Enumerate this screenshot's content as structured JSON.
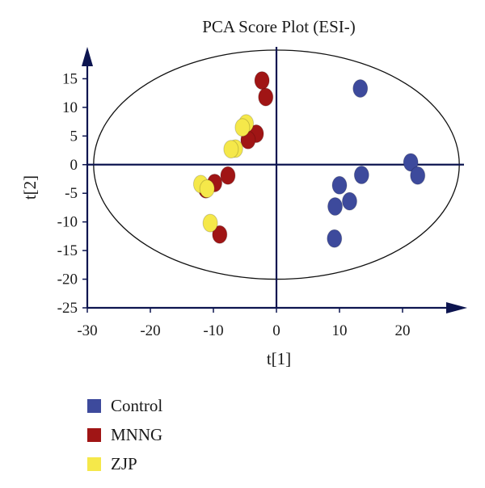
{
  "chart_data": {
    "type": "scatter",
    "title": "PCA Score Plot (ESI-)",
    "xlabel": "t[1]",
    "ylabel": "t[2]",
    "xlim": [
      -30,
      30
    ],
    "ylim": [
      -25,
      20
    ],
    "xticks": [
      -30,
      -20,
      -10,
      0,
      10,
      20
    ],
    "yticks": [
      -25,
      -20,
      -15,
      -10,
      -5,
      0,
      5,
      10,
      15
    ],
    "grid": false,
    "legend_position": "bottom-left",
    "ellipse": {
      "center": [
        0,
        0
      ],
      "radius_x": 29,
      "radius_y": 20
    },
    "series": [
      {
        "name": "Control",
        "color": "#3d4a9c",
        "points": [
          [
            13.3,
            13.3
          ],
          [
            21.3,
            0.4
          ],
          [
            22.4,
            -1.9
          ],
          [
            13.5,
            -1.8
          ],
          [
            10.0,
            -3.6
          ],
          [
            11.6,
            -6.4
          ],
          [
            9.3,
            -7.3
          ],
          [
            9.2,
            -12.9
          ]
        ]
      },
      {
        "name": "MNNG",
        "color": "#a01515",
        "points": [
          [
            -2.3,
            14.7
          ],
          [
            -1.7,
            11.8
          ],
          [
            -3.2,
            5.4
          ],
          [
            -4.5,
            4.3
          ],
          [
            -7.7,
            -1.9
          ],
          [
            -9.8,
            -3.2
          ],
          [
            -11.2,
            -4.3
          ],
          [
            -9.0,
            -12.2
          ]
        ]
      },
      {
        "name": "ZJP",
        "color": "#f5e84a",
        "points": [
          [
            -4.8,
            7.2
          ],
          [
            -5.4,
            6.5
          ],
          [
            -6.5,
            2.8
          ],
          [
            -7.2,
            2.7
          ],
          [
            -12.0,
            -3.4
          ],
          [
            -11.0,
            -4.2
          ],
          [
            -10.5,
            -10.2
          ]
        ]
      }
    ]
  }
}
